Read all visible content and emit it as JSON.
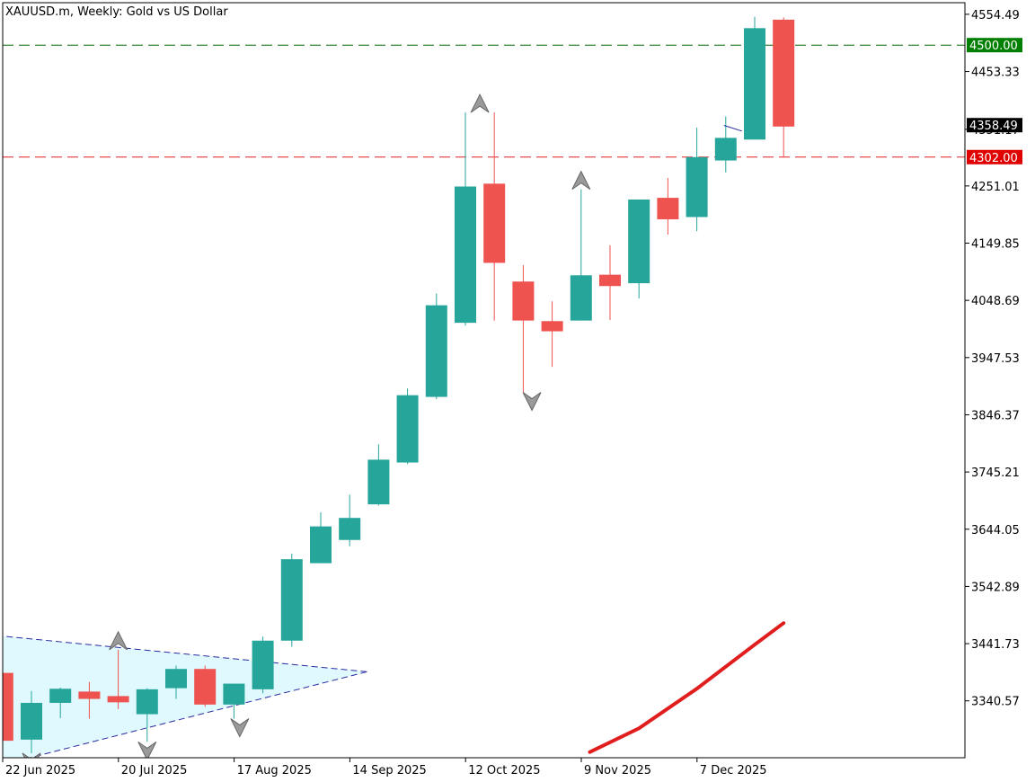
{
  "chart_data": {
    "type": "candlestick",
    "title": "XAUUSD.m, Weekly:  Gold vs US Dollar",
    "timeframe": "Weekly",
    "ylim": [
      3240,
      4575
    ],
    "y_ticks": [
      4554.49,
      4453.33,
      4351.17,
      4251.01,
      4149.85,
      4048.69,
      3947.53,
      3846.37,
      3745.21,
      3644.05,
      3542.89,
      3441.73,
      3340.57
    ],
    "x_ticks": [
      {
        "index": 0,
        "label": "22 Jun 2025"
      },
      {
        "index": 4,
        "label": "20 Jul 2025"
      },
      {
        "index": 8,
        "label": "17 Aug 2025"
      },
      {
        "index": 12,
        "label": "14 Sep 2025"
      },
      {
        "index": 16,
        "label": "12 Oct 2025"
      },
      {
        "index": 20,
        "label": "9 Nov 2025"
      },
      {
        "index": 24,
        "label": "7 Dec 2025"
      }
    ],
    "bull_color": "#26a69a",
    "bear_color": "#ef5350",
    "candles": [
      {
        "i": -1,
        "o": 3390,
        "h": 3400,
        "c": 3270,
        "l": 3262
      },
      {
        "i": 0,
        "o": 3272,
        "h": 3358,
        "c": 3337,
        "l": 3248
      },
      {
        "i": 1,
        "o": 3337,
        "h": 3364,
        "c": 3362,
        "l": 3310
      },
      {
        "i": 2,
        "o": 3357,
        "h": 3374,
        "c": 3344,
        "l": 3309
      },
      {
        "i": 3,
        "o": 3349,
        "h": 3431,
        "c": 3338,
        "l": 3326
      },
      {
        "i": 4,
        "o": 3317,
        "h": 3363,
        "c": 3361,
        "l": 3268
      },
      {
        "i": 5,
        "o": 3363,
        "h": 3403,
        "c": 3397,
        "l": 3344
      },
      {
        "i": 6,
        "o": 3397,
        "h": 3403,
        "c": 3334,
        "l": 3330
      },
      {
        "i": 7,
        "o": 3334,
        "h": 3369,
        "c": 3371,
        "l": 3309
      },
      {
        "i": 8,
        "o": 3361,
        "h": 3454,
        "c": 3447,
        "l": 3354
      },
      {
        "i": 9,
        "o": 3447,
        "h": 3601,
        "c": 3591,
        "l": 3436
      },
      {
        "i": 10,
        "o": 3584,
        "h": 3674,
        "c": 3649,
        "l": 3584
      },
      {
        "i": 11,
        "o": 3625,
        "h": 3705,
        "c": 3664,
        "l": 3614
      },
      {
        "i": 12,
        "o": 3688,
        "h": 3794,
        "c": 3767,
        "l": 3686
      },
      {
        "i": 13,
        "o": 3762,
        "h": 3893,
        "c": 3881,
        "l": 3759
      },
      {
        "i": 14,
        "o": 3878,
        "h": 4061,
        "c": 4040,
        "l": 3874
      },
      {
        "i": 15,
        "o": 4009,
        "h": 4381,
        "c": 4250,
        "l": 4004
      },
      {
        "i": 16,
        "o": 4255,
        "h": 4381,
        "c": 4115,
        "l": 4013
      },
      {
        "i": 17,
        "o": 4082,
        "h": 4111,
        "c": 4013,
        "l": 3886
      },
      {
        "i": 18,
        "o": 4012,
        "h": 4047,
        "c": 3994,
        "l": 3931
      },
      {
        "i": 19,
        "o": 4013,
        "h": 4245,
        "c": 4093,
        "l": 4013
      },
      {
        "i": 20,
        "o": 4094,
        "h": 4146,
        "c": 4074,
        "l": 4014
      },
      {
        "i": 21,
        "o": 4079,
        "h": 4221,
        "c": 4227,
        "l": 4052
      },
      {
        "i": 22,
        "o": 4230,
        "h": 4265,
        "c": 4192,
        "l": 4165
      },
      {
        "i": 23,
        "o": 4196,
        "h": 4354,
        "c": 4302,
        "l": 4171
      },
      {
        "i": 24,
        "o": 4296,
        "h": 4374,
        "c": 4336,
        "l": 4275
      },
      {
        "i": 25,
        "o": 4333,
        "h": 4550,
        "c": 4530,
        "l": 4333
      },
      {
        "i": 26,
        "o": 4545,
        "h": 4549,
        "c": 4356,
        "l": 4302
      }
    ],
    "h_lines": [
      {
        "value": 4500.0,
        "label": "4500.00",
        "color": "#006400",
        "style": "dash-long"
      },
      {
        "value": 4302.0,
        "label": "4302.00",
        "color": "#e02020",
        "style": "dash-long"
      }
    ],
    "price_marker": {
      "value": 4358.49,
      "label": "4358.49",
      "color": "#000000"
    },
    "moving_average": {
      "color": "#e01e1e",
      "points": [
        {
          "i": 19.3,
          "v": 3250
        },
        {
          "i": 21.0,
          "v": 3292
        },
        {
          "i": 23.0,
          "v": 3362
        },
        {
          "i": 25.0,
          "v": 3440
        },
        {
          "i": 26.0,
          "v": 3478
        }
      ]
    },
    "triangle": {
      "fill": "#dff9ff",
      "line_color": "#2a2aa0",
      "upper": [
        {
          "i": -1.2,
          "v": 3456
        },
        {
          "i": 11.6,
          "v": 3392
        }
      ],
      "lower": [
        {
          "i": -1.2,
          "v": 3225
        },
        {
          "i": 11.6,
          "v": 3392
        }
      ]
    },
    "fractals": [
      {
        "i": 3,
        "v": 3431,
        "dir": "up"
      },
      {
        "i": 15.5,
        "v": 4381,
        "dir": "up"
      },
      {
        "i": 19,
        "v": 4245,
        "dir": "up"
      },
      {
        "i": 0,
        "v": 3248,
        "dir": "down"
      },
      {
        "i": 4,
        "v": 3268,
        "dir": "down"
      },
      {
        "i": 7.2,
        "v": 3309,
        "dir": "down"
      },
      {
        "i": 17.3,
        "v": 3886,
        "dir": "down"
      }
    ]
  }
}
